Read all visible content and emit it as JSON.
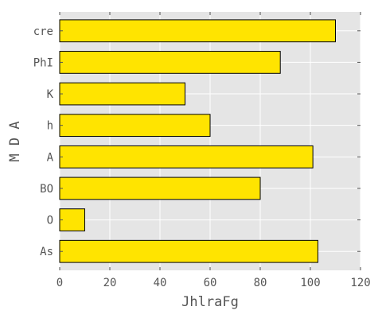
{
  "chart_data": {
    "type": "bar",
    "orientation": "horizontal",
    "categories": [
      "cre",
      "PhI",
      "K",
      "h",
      "A",
      "BO",
      "O",
      "As"
    ],
    "values": [
      110,
      88,
      50,
      60,
      101,
      80,
      10,
      103
    ],
    "xlabel": "JhlraFg",
    "ylabel": "M D A",
    "xlim": [
      0,
      120
    ],
    "x_ticks": [
      0,
      20,
      40,
      60,
      80,
      100,
      120
    ],
    "grid": true,
    "bar_color": "#ffe400",
    "bar_edge_color": "#000000",
    "plot_background": "#e5e5e5",
    "grid_color": "#ffffff"
  }
}
